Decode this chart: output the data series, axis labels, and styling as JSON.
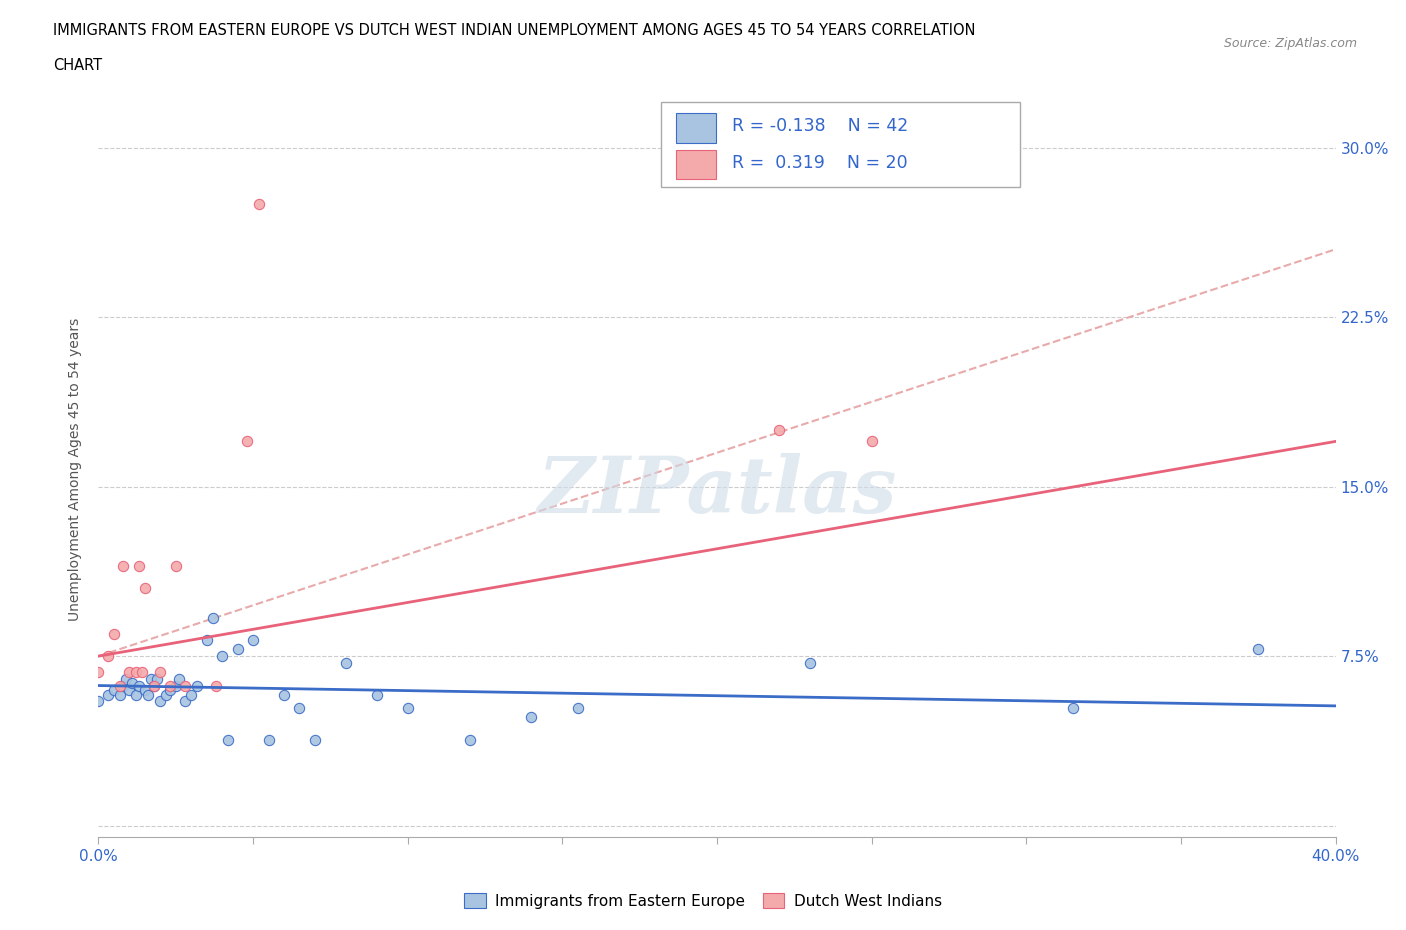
{
  "title_line1": "IMMIGRANTS FROM EASTERN EUROPE VS DUTCH WEST INDIAN UNEMPLOYMENT AMONG AGES 45 TO 54 YEARS CORRELATION",
  "title_line2": "CHART",
  "source": "Source: ZipAtlas.com",
  "ylabel": "Unemployment Among Ages 45 to 54 years",
  "xlim": [
    0.0,
    0.4
  ],
  "ylim": [
    -0.005,
    0.32
  ],
  "xticks": [
    0.0,
    0.05,
    0.1,
    0.15,
    0.2,
    0.25,
    0.3,
    0.35,
    0.4
  ],
  "xticklabels": [
    "0.0%",
    "",
    "",
    "",
    "",
    "",
    "",
    "",
    "40.0%"
  ],
  "ytick_positions": [
    0.0,
    0.075,
    0.15,
    0.225,
    0.3
  ],
  "ytick_labels": [
    "",
    "7.5%",
    "15.0%",
    "22.5%",
    "30.0%"
  ],
  "blue_color": "#A8C4E0",
  "pink_color": "#F4AAAA",
  "blue_line_color": "#3B6CC7",
  "pink_line_color": "#E8627A",
  "dashed_line_color": "#E8AAAA",
  "watermark": "ZIPatlas",
  "blue_scatter_x": [
    0.0,
    0.003,
    0.005,
    0.007,
    0.008,
    0.009,
    0.01,
    0.011,
    0.012,
    0.013,
    0.015,
    0.016,
    0.017,
    0.018,
    0.019,
    0.02,
    0.022,
    0.023,
    0.025,
    0.026,
    0.028,
    0.03,
    0.032,
    0.035,
    0.037,
    0.04,
    0.042,
    0.045,
    0.05,
    0.055,
    0.06,
    0.065,
    0.07,
    0.08,
    0.09,
    0.1,
    0.12,
    0.14,
    0.155,
    0.23,
    0.315,
    0.375
  ],
  "blue_scatter_y": [
    0.055,
    0.058,
    0.06,
    0.058,
    0.062,
    0.065,
    0.06,
    0.063,
    0.058,
    0.062,
    0.06,
    0.058,
    0.065,
    0.062,
    0.065,
    0.055,
    0.058,
    0.06,
    0.062,
    0.065,
    0.055,
    0.058,
    0.062,
    0.082,
    0.092,
    0.075,
    0.038,
    0.078,
    0.082,
    0.038,
    0.058,
    0.052,
    0.038,
    0.072,
    0.058,
    0.052,
    0.038,
    0.048,
    0.052,
    0.072,
    0.052,
    0.078
  ],
  "pink_scatter_x": [
    0.0,
    0.003,
    0.005,
    0.007,
    0.008,
    0.01,
    0.012,
    0.013,
    0.014,
    0.015,
    0.018,
    0.02,
    0.023,
    0.025,
    0.028,
    0.038,
    0.048,
    0.052,
    0.22,
    0.25
  ],
  "pink_scatter_y": [
    0.068,
    0.075,
    0.085,
    0.062,
    0.115,
    0.068,
    0.068,
    0.115,
    0.068,
    0.105,
    0.062,
    0.068,
    0.062,
    0.115,
    0.062,
    0.062,
    0.17,
    0.275,
    0.175,
    0.17
  ],
  "blue_trend_x": [
    0.0,
    0.4
  ],
  "blue_trend_y": [
    0.062,
    0.053
  ],
  "pink_trend_x": [
    0.0,
    0.4
  ],
  "pink_trend_y": [
    0.075,
    0.17
  ],
  "dash_trend_x": [
    0.0,
    0.4
  ],
  "dash_trend_y": [
    0.075,
    0.255
  ]
}
